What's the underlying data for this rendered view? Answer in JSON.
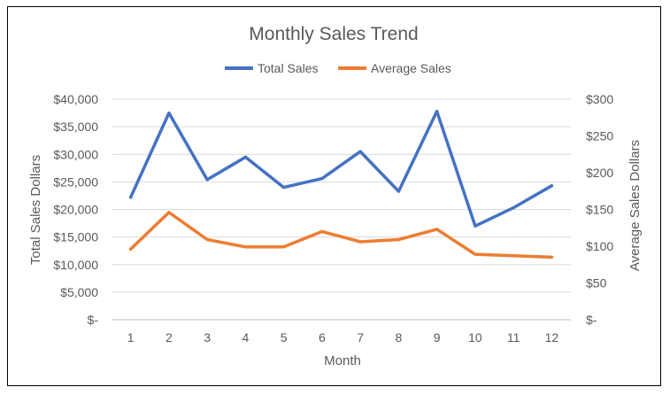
{
  "chart_data": {
    "type": "line",
    "title": "Monthly Sales Trend",
    "xlabel": "Month",
    "ylabel": "Total Sales Dollars",
    "y2label": "Average Sales Dollars",
    "categories": [
      "1",
      "2",
      "3",
      "4",
      "5",
      "6",
      "7",
      "8",
      "9",
      "10",
      "11",
      "12"
    ],
    "ylim": [
      0,
      40000
    ],
    "y2lim": [
      0,
      300
    ],
    "yticks": [
      "$-",
      "$5,000",
      "$10,000",
      "$15,000",
      "$20,000",
      "$25,000",
      "$30,000",
      "$35,000",
      "$40,000"
    ],
    "y2ticks": [
      "$-",
      "$50",
      "$100",
      "$150",
      "$200",
      "$250",
      "$300"
    ],
    "legend_position": "top",
    "grid": true,
    "series": [
      {
        "name": "Total Sales",
        "axis": "left",
        "color": "#4472C4",
        "values": [
          22200,
          37500,
          25400,
          29500,
          24000,
          25600,
          30500,
          23300,
          37800,
          17000,
          20300,
          24300
        ]
      },
      {
        "name": "Average Sales",
        "axis": "right",
        "color": "#ED7D31",
        "values": [
          96,
          146,
          109,
          99,
          99,
          120,
          106,
          109,
          123,
          89,
          87,
          85
        ]
      }
    ]
  }
}
